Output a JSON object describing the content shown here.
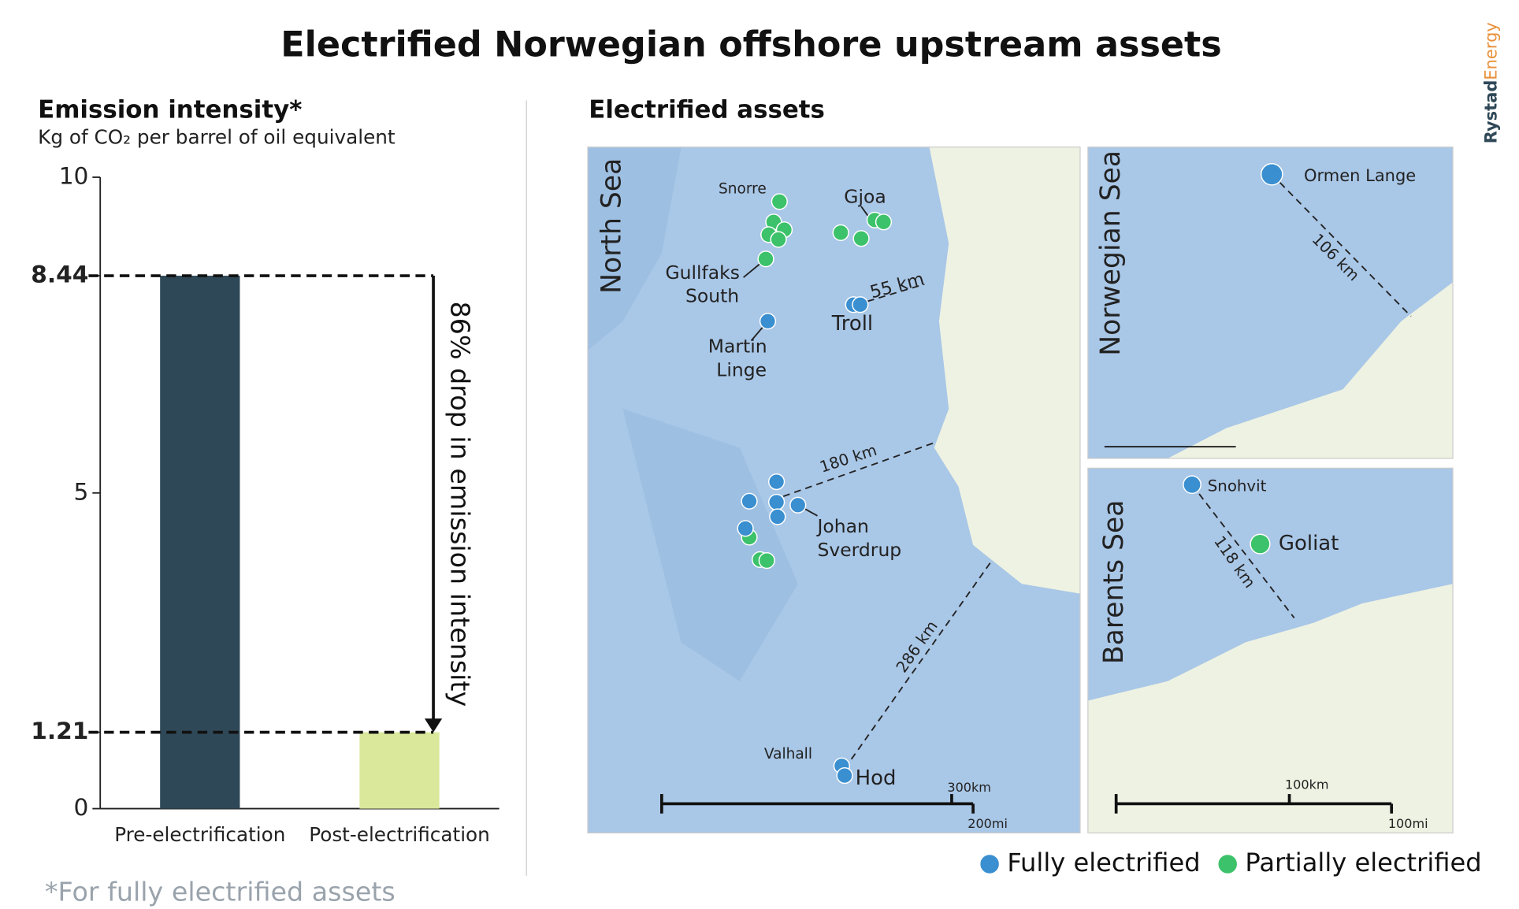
{
  "title": "Electrified Norwegian offshore upstream assets",
  "brand": {
    "part1": "Rystad",
    "part2": "Energy"
  },
  "chart_data": {
    "type": "bar",
    "title": "Emission intensity*",
    "subtitle": "Kg of CO₂ per barrel of oil equivalent",
    "categories": [
      "Pre-electrification",
      "Post-electrification"
    ],
    "values": [
      8.44,
      1.21
    ],
    "colors": [
      "#2f4858",
      "#d9e89a"
    ],
    "ylim": [
      0,
      10
    ],
    "yticks": [
      0,
      1.21,
      5,
      8.44,
      10
    ],
    "annotation": "86% drop in emission intensity",
    "footnote": "*For fully electrified assets"
  },
  "map": {
    "title": "Electrified assets",
    "seas": [
      "North Sea",
      "Norwegian Sea",
      "Barents Sea"
    ],
    "assets": [
      "Snorre",
      "Gjoa",
      [
        "Gullfaks",
        "South"
      ],
      "Troll",
      [
        "Martin",
        "Linge"
      ],
      [
        "Johan",
        "Sverdrup"
      ],
      "Valhall",
      "Hod",
      "Ormen Lange",
      "Snohvit",
      "Goliat"
    ],
    "distances": [
      "55 km",
      "180 km",
      "286 km",
      "106 km",
      "118 km"
    ],
    "scale_labels": [
      "300km",
      "200mi",
      "100km",
      "100mi"
    ],
    "legend": [
      {
        "name": "Fully electrified",
        "color": "#3a8fd0"
      },
      {
        "name": "Partially electrified",
        "color": "#3cc26a"
      }
    ]
  }
}
